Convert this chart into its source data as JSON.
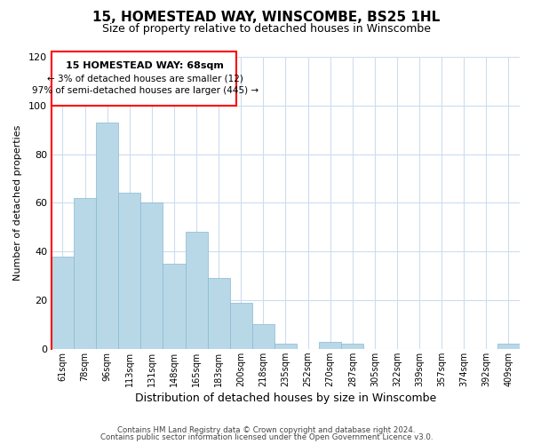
{
  "title": "15, HOMESTEAD WAY, WINSCOMBE, BS25 1HL",
  "subtitle": "Size of property relative to detached houses in Winscombe",
  "xlabel": "Distribution of detached houses by size in Winscombe",
  "ylabel": "Number of detached properties",
  "bar_labels": [
    "61sqm",
    "78sqm",
    "96sqm",
    "113sqm",
    "131sqm",
    "148sqm",
    "165sqm",
    "183sqm",
    "200sqm",
    "218sqm",
    "235sqm",
    "252sqm",
    "270sqm",
    "287sqm",
    "305sqm",
    "322sqm",
    "339sqm",
    "357sqm",
    "374sqm",
    "392sqm",
    "409sqm"
  ],
  "bar_heights": [
    38,
    62,
    93,
    64,
    60,
    35,
    48,
    29,
    19,
    10,
    2,
    0,
    3,
    2,
    0,
    0,
    0,
    0,
    0,
    0,
    2
  ],
  "bar_color": "#b8d8e8",
  "highlight_color": "#ff0000",
  "ylim": [
    0,
    120
  ],
  "yticks": [
    0,
    20,
    40,
    60,
    80,
    100,
    120
  ],
  "annotation_title": "15 HOMESTEAD WAY: 68sqm",
  "annotation_line1": "← 3% of detached houses are smaller (12)",
  "annotation_line2": "97% of semi-detached houses are larger (445) →",
  "footer_line1": "Contains HM Land Registry data © Crown copyright and database right 2024.",
  "footer_line2": "Contains public sector information licensed under the Open Government Licence v3.0.",
  "grid_color": "#ccddee",
  "background_color": "#ffffff"
}
